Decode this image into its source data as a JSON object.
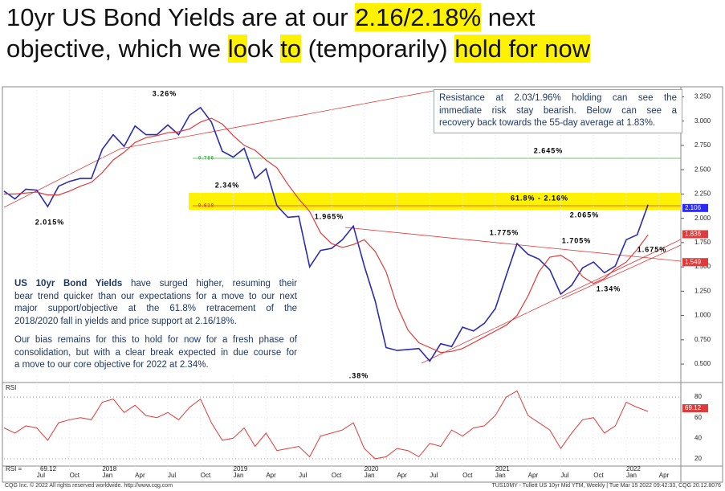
{
  "title_lines": [
    [
      {
        "text": "10yr US Bond Yields are at our ",
        "highlight": false
      },
      {
        "text": "2.16/2.18%",
        "highlight": true
      },
      {
        "text": " next",
        "highlight": false
      }
    ],
    [
      {
        "text": "objective, which we ",
        "highlight": false
      },
      {
        "text": "lo",
        "highlight": true
      },
      {
        "text": "ok ",
        "highlight": false
      },
      {
        "text": "to",
        "highlight": true
      },
      {
        "text": " (temporarily) ",
        "highlight": false
      },
      {
        "text": "hold for now",
        "highlight": true
      }
    ]
  ],
  "highlight_color": "#fff200",
  "note_lines": [
    "Resistance at 2.03/1.96% holding can see the",
    "immediate risk stay bearish. Below can see a",
    "recovery back towards the 55-day average at 1.83%."
  ],
  "comment": {
    "bold": "US 10yr Bond Yields",
    "p1": [
      " have surged higher, resuming their",
      "bear trend quicker than our expectations for a move to our next",
      "major support/objective at the 61.8% retracement of the",
      "2018/2020 fall in yields and price support at 2.16/18%."
    ],
    "p2": [
      "Our bias remains for this to hold for now for a fresh phase of",
      "consolidation, but with a clear break expected in due course for",
      "a move to our core objective for 2022 at 2.34%."
    ]
  },
  "footer_left": "CQG Inc. © 2022 All rights reserved worldwide. http://www.cqg.com",
  "footer_right": "TUS10MY - Tullett US 10yr Mid YTM, Weekly | Tue Mar 15 2022 09:42:33, CQG 20.12.8076",
  "chart_data": {
    "type": "line",
    "x": [
      "2017-04",
      "2017-05",
      "2017-06",
      "2017-07",
      "2017-08",
      "2017-09",
      "2017-10",
      "2017-11",
      "2017-12",
      "2018-01",
      "2018-02",
      "2018-03",
      "2018-04",
      "2018-05",
      "2018-06",
      "2018-07",
      "2018-08",
      "2018-09",
      "2018-10",
      "2018-11",
      "2018-12",
      "2019-01",
      "2019-02",
      "2019-03",
      "2019-04",
      "2019-05",
      "2019-06",
      "2019-07",
      "2019-08",
      "2019-09",
      "2019-10",
      "2019-11",
      "2019-12",
      "2020-01",
      "2020-02",
      "2020-03",
      "2020-04",
      "2020-05",
      "2020-06",
      "2020-07",
      "2020-08",
      "2020-09",
      "2020-10",
      "2020-11",
      "2020-12",
      "2021-01",
      "2021-02",
      "2021-03",
      "2021-04",
      "2021-05",
      "2021-06",
      "2021-07",
      "2021-08",
      "2021-09",
      "2021-10",
      "2021-11",
      "2021-12",
      "2022-01",
      "2022-02",
      "2022-03"
    ],
    "xlim": [
      "2017-04",
      "2022-06"
    ],
    "series": [
      {
        "color": "#2b2bb0",
        "values": [
          2.28,
          2.2,
          2.3,
          2.29,
          2.12,
          2.33,
          2.38,
          2.41,
          2.41,
          2.71,
          2.86,
          2.74,
          2.95,
          2.86,
          2.86,
          2.96,
          2.86,
          3.06,
          3.14,
          2.99,
          2.69,
          2.63,
          2.72,
          2.41,
          2.51,
          2.13,
          2.01,
          2.02,
          1.5,
          1.67,
          1.69,
          1.78,
          1.92,
          1.51,
          1.15,
          0.67,
          0.64,
          0.65,
          0.66,
          0.53,
          0.71,
          0.68,
          0.88,
          0.84,
          0.92,
          1.07,
          1.41,
          1.74,
          1.63,
          1.58,
          1.47,
          1.22,
          1.31,
          1.49,
          1.55,
          1.44,
          1.51,
          1.78,
          1.83,
          2.14
        ]
      },
      {
        "color": "#e03a3a",
        "values": [
          2.25,
          2.25,
          2.26,
          2.27,
          2.24,
          2.24,
          2.28,
          2.33,
          2.37,
          2.47,
          2.6,
          2.68,
          2.78,
          2.83,
          2.85,
          2.88,
          2.89,
          2.92,
          2.99,
          3.03,
          2.97,
          2.85,
          2.75,
          2.7,
          2.6,
          2.52,
          2.35,
          2.2,
          2.07,
          1.85,
          1.74,
          1.7,
          1.73,
          1.78,
          1.66,
          1.45,
          1.1,
          0.85,
          0.72,
          0.67,
          0.62,
          0.63,
          0.66,
          0.72,
          0.78,
          0.84,
          0.9,
          1.0,
          1.2,
          1.45,
          1.6,
          1.62,
          1.55,
          1.4,
          1.33,
          1.38,
          1.48,
          1.55,
          1.68,
          1.83
        ]
      }
    ],
    "ylim": [
      0.36,
      3.32
    ],
    "yticks": [
      {
        "value": 0.5,
        "label": "0.500"
      },
      {
        "value": 0.75,
        "label": "0.750"
      },
      {
        "value": 1,
        "label": "1.000"
      },
      {
        "value": 1.25,
        "label": "1.250"
      },
      {
        "value": 1.5,
        "label": "1.500"
      },
      {
        "value": 1.75,
        "label": "1.750"
      },
      {
        "value": 2,
        "label": "2.000"
      },
      {
        "value": 2.25,
        "label": "2.250"
      },
      {
        "value": 2.5,
        "label": "2.500"
      },
      {
        "value": 2.75,
        "label": "2.750"
      },
      {
        "value": 3,
        "label": "3.000"
      },
      {
        "value": 3.25,
        "label": "3.250"
      }
    ],
    "price_markers": [
      {
        "value": 2.106,
        "label": "2.106",
        "color": "#2a2aff"
      },
      {
        "value": 1.836,
        "label": "1.836",
        "color": "#e03a3a"
      },
      {
        "value": 1.549,
        "label": "1.549",
        "color": "#e03a3a"
      }
    ],
    "annotations": [
      "3.26%",
      "2.015%",
      "2.34%",
      "1.965%",
      "2.645%",
      "61.8%  -  2.16%",
      "2.065%",
      "1.775%",
      "1.705%",
      "1.675%",
      "1.34%",
      ".38%",
      "0.786",
      "0.618"
    ],
    "xticks": [
      {
        "value": "2017-07",
        "label": "Jul"
      },
      {
        "value": "2017-10",
        "label": "Oct"
      },
      {
        "value": "2018-01",
        "label": "Jan"
      },
      {
        "value": "2018-04",
        "label": "Apr"
      },
      {
        "value": "2018-07",
        "label": "Jul"
      },
      {
        "value": "2018-10",
        "label": "Oct"
      },
      {
        "value": "2019-01",
        "label": "Jan"
      },
      {
        "value": "2019-04",
        "label": "Apr"
      },
      {
        "value": "2019-07",
        "label": "Jul"
      },
      {
        "value": "2019-10",
        "label": "Oct"
      },
      {
        "value": "2020-01",
        "label": "Jan"
      },
      {
        "value": "2020-04",
        "label": "Apr"
      },
      {
        "value": "2020-07",
        "label": "Jul"
      },
      {
        "value": "2020-10",
        "label": "Oct"
      },
      {
        "value": "2021-01",
        "label": "Jan"
      },
      {
        "value": "2021-04",
        "label": "Apr"
      },
      {
        "value": "2021-07",
        "label": "Jul"
      },
      {
        "value": "2021-10",
        "label": "Oct"
      },
      {
        "value": "2022-01",
        "label": "Jan"
      },
      {
        "value": "2022-04",
        "label": "Apr"
      }
    ],
    "xyears": [
      {
        "value": "2018-01",
        "label": "2018"
      },
      {
        "value": "2019-01",
        "label": "2019"
      },
      {
        "value": "2020-01",
        "label": "2020"
      },
      {
        "value": "2021-01",
        "label": "2021"
      },
      {
        "value": "2022-01",
        "label": "2022"
      }
    ],
    "rsi": {
      "label": "RSI",
      "readout": "RSI =",
      "color": "#e03a3a",
      "values": [
        50,
        45,
        52,
        50,
        38,
        55,
        58,
        60,
        58,
        75,
        78,
        65,
        72,
        62,
        60,
        65,
        58,
        70,
        78,
        55,
        38,
        40,
        50,
        32,
        45,
        28,
        30,
        32,
        22,
        42,
        45,
        48,
        55,
        30,
        20,
        22,
        30,
        28,
        22,
        35,
        32,
        48,
        42,
        50,
        52,
        62,
        80,
        86,
        62,
        55,
        48,
        30,
        45,
        58,
        60,
        45,
        52,
        75,
        70,
        66
      ],
      "ylim": [
        9,
        91
      ],
      "yticks": [
        20,
        40,
        60,
        80
      ],
      "marker": {
        "value": 69.12,
        "label": "69.12"
      }
    }
  }
}
